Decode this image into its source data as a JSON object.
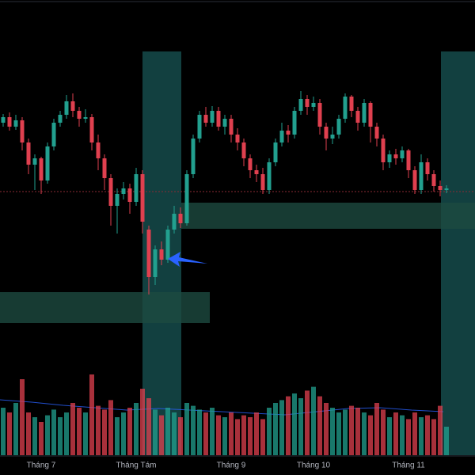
{
  "chart_data": {
    "type": "candlestick",
    "categories": [
      null,
      null,
      null,
      null,
      null,
      null,
      "Tháng 7",
      null,
      null,
      null,
      null,
      null,
      null,
      null,
      null,
      null,
      null,
      null,
      null,
      null,
      null,
      "Tháng Tám",
      null,
      null,
      null,
      null,
      null,
      null,
      null,
      null,
      null,
      null,
      null,
      null,
      null,
      null,
      "Tháng 9",
      null,
      null,
      null,
      null,
      null,
      null,
      null,
      null,
      null,
      null,
      null,
      null,
      "Tháng 10",
      null,
      null,
      null,
      null,
      null,
      null,
      null,
      null,
      null,
      null,
      null,
      null,
      null,
      null,
      "Tháng 11",
      null,
      null,
      null,
      null,
      null,
      null
    ],
    "ohlc": [
      [
        445,
        456,
        440,
        452
      ],
      [
        452,
        458,
        435,
        440
      ],
      [
        440,
        455,
        436,
        448
      ],
      [
        448,
        452,
        410,
        420
      ],
      [
        420,
        425,
        380,
        392
      ],
      [
        392,
        405,
        360,
        400
      ],
      [
        400,
        402,
        355,
        372
      ],
      [
        372,
        420,
        368,
        415
      ],
      [
        415,
        450,
        410,
        445
      ],
      [
        445,
        460,
        440,
        455
      ],
      [
        455,
        480,
        450,
        472
      ],
      [
        472,
        482,
        452,
        460
      ],
      [
        460,
        465,
        440,
        450
      ],
      [
        450,
        462,
        445,
        452
      ],
      [
        452,
        456,
        410,
        420
      ],
      [
        420,
        430,
        385,
        400
      ],
      [
        400,
        405,
        360,
        375
      ],
      [
        375,
        380,
        315,
        340
      ],
      [
        340,
        362,
        305,
        355
      ],
      [
        355,
        370,
        348,
        362
      ],
      [
        362,
        368,
        330,
        345
      ],
      [
        345,
        388,
        340,
        380
      ],
      [
        380,
        385,
        305,
        320
      ],
      [
        310,
        315,
        228,
        250
      ],
      [
        250,
        290,
        240,
        285
      ],
      [
        285,
        295,
        265,
        272
      ],
      [
        272,
        315,
        268,
        310
      ],
      [
        310,
        340,
        305,
        330
      ],
      [
        330,
        338,
        312,
        318
      ],
      [
        318,
        385,
        315,
        380
      ],
      [
        380,
        430,
        375,
        425
      ],
      [
        425,
        460,
        420,
        455
      ],
      [
        455,
        465,
        440,
        445
      ],
      [
        445,
        466,
        440,
        460
      ],
      [
        460,
        465,
        435,
        440
      ],
      [
        440,
        455,
        430,
        450
      ],
      [
        450,
        455,
        420,
        430
      ],
      [
        430,
        438,
        410,
        420
      ],
      [
        420,
        425,
        390,
        400
      ],
      [
        400,
        405,
        375,
        385
      ],
      [
        385,
        392,
        370,
        380
      ],
      [
        380,
        388,
        355,
        360
      ],
      [
        360,
        400,
        355,
        395
      ],
      [
        395,
        425,
        390,
        420
      ],
      [
        420,
        445,
        415,
        435
      ],
      [
        435,
        442,
        420,
        430
      ],
      [
        430,
        465,
        425,
        460
      ],
      [
        460,
        485,
        455,
        475
      ],
      [
        475,
        480,
        455,
        465
      ],
      [
        465,
        478,
        460,
        470
      ],
      [
        470,
        475,
        430,
        440
      ],
      [
        440,
        445,
        410,
        425
      ],
      [
        425,
        440,
        418,
        430
      ],
      [
        430,
        455,
        425,
        450
      ],
      [
        450,
        482,
        445,
        478
      ],
      [
        478,
        480,
        452,
        460
      ],
      [
        460,
        465,
        435,
        445
      ],
      [
        445,
        475,
        440,
        470
      ],
      [
        470,
        472,
        420,
        440
      ],
      [
        440,
        445,
        415,
        425
      ],
      [
        425,
        430,
        385,
        395
      ],
      [
        395,
        410,
        388,
        405
      ],
      [
        405,
        412,
        392,
        400
      ],
      [
        400,
        415,
        395,
        410
      ],
      [
        410,
        412,
        375,
        385
      ],
      [
        385,
        390,
        355,
        360
      ],
      [
        360,
        405,
        355,
        395
      ],
      [
        395,
        400,
        372,
        380
      ],
      [
        380,
        385,
        358,
        365
      ],
      [
        365,
        372,
        352,
        360
      ],
      [
        360,
        366,
        356,
        362
      ]
    ],
    "volume": [
      50,
      45,
      55,
      80,
      45,
      40,
      35,
      42,
      48,
      40,
      45,
      55,
      50,
      45,
      85,
      52,
      48,
      58,
      40,
      45,
      50,
      55,
      70,
      60,
      48,
      42,
      50,
      45,
      40,
      55,
      52,
      48,
      45,
      50,
      42,
      40,
      45,
      38,
      42,
      40,
      45,
      38,
      50,
      55,
      58,
      62,
      65,
      60,
      68,
      72,
      62,
      55,
      50,
      45,
      48,
      52,
      50,
      45,
      42,
      55,
      48,
      40,
      45,
      42,
      38,
      45,
      40,
      42,
      38,
      52,
      30
    ],
    "ylim": [
      0,
      600
    ],
    "volume_ylim": [
      0,
      100
    ],
    "up_color": "#22a08f",
    "down_color": "#e0404f"
  }
}
